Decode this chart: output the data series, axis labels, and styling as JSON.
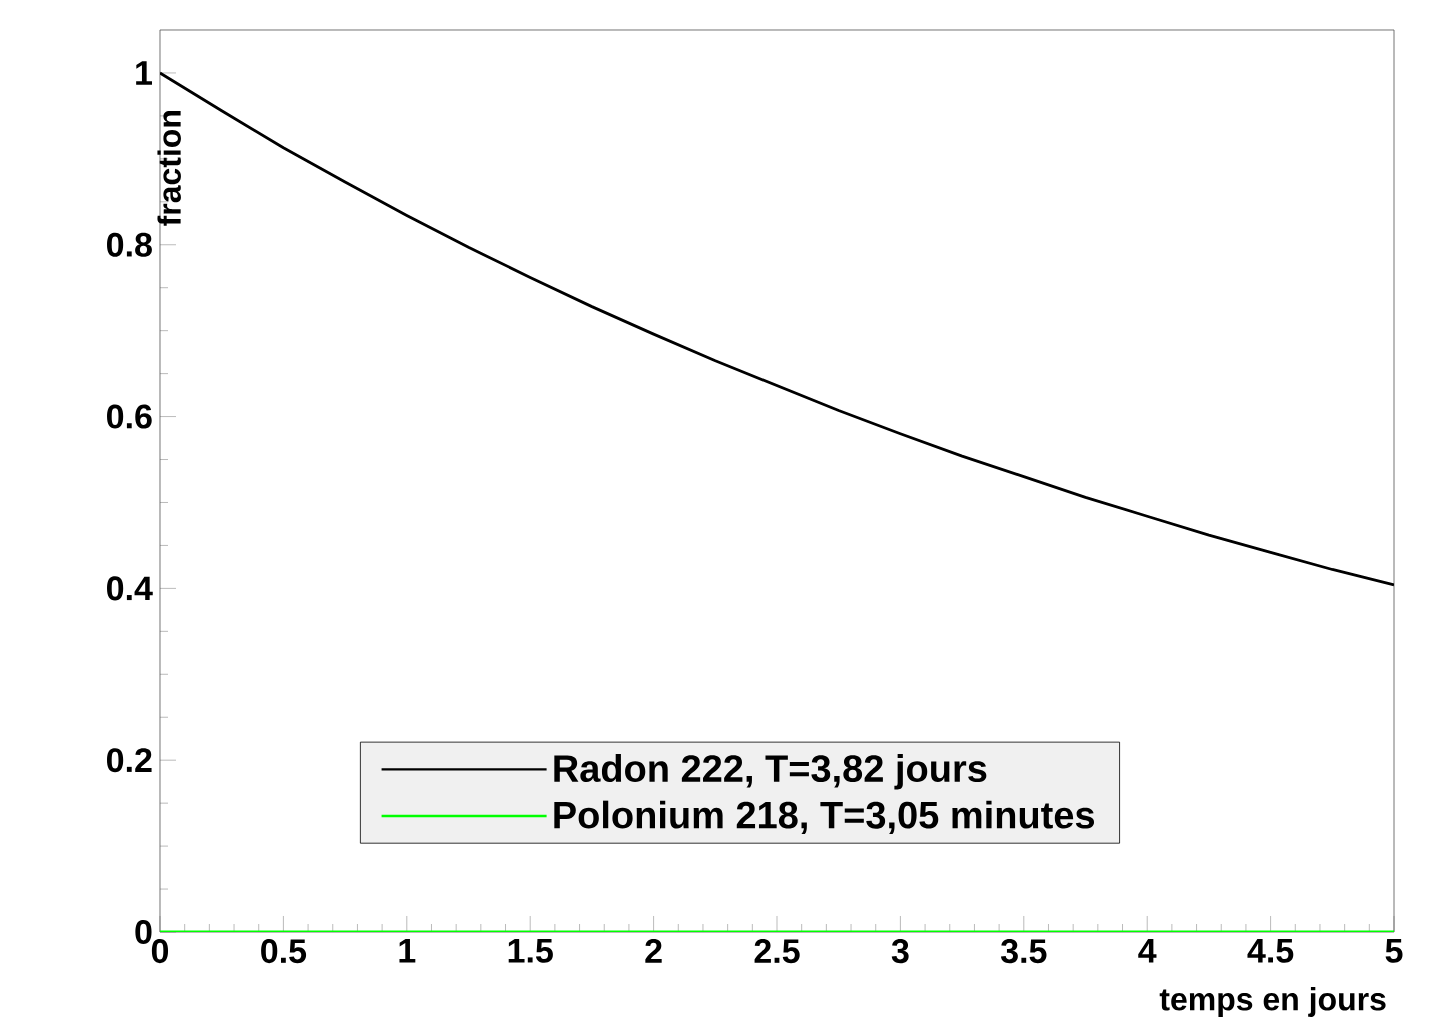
{
  "chart_data": {
    "type": "line",
    "xlabel": "temps en jours",
    "ylabel": "fraction",
    "xlim": [
      0,
      5
    ],
    "ylim": [
      0,
      1.05
    ],
    "xticks": [
      0,
      0.5,
      1,
      1.5,
      2,
      2.5,
      3,
      3.5,
      4,
      4.5,
      5
    ],
    "yticks": [
      0,
      0.2,
      0.4,
      0.6,
      0.8,
      1
    ],
    "legend": "bottom",
    "marker": "none",
    "line_style": "solid",
    "series": [
      {
        "name": "Radon 222, T=3,82 jours",
        "color": "#000000",
        "x": [
          0,
          0.25,
          0.5,
          0.75,
          1,
          1.25,
          1.5,
          1.75,
          2,
          2.25,
          2.5,
          2.75,
          3,
          3.25,
          3.5,
          3.75,
          4,
          4.25,
          4.5,
          4.75,
          5
        ],
        "values": [
          1,
          0.956,
          0.913,
          0.873,
          0.834,
          0.797,
          0.762,
          0.728,
          0.696,
          0.665,
          0.636,
          0.607,
          0.58,
          0.554,
          0.53,
          0.506,
          0.484,
          0.462,
          0.442,
          0.422,
          0.404
        ]
      },
      {
        "name": "Polonium 218, T=3,05 minutes",
        "color": "#00ff00",
        "x": [
          0,
          5
        ],
        "values": [
          0,
          0
        ]
      }
    ]
  }
}
